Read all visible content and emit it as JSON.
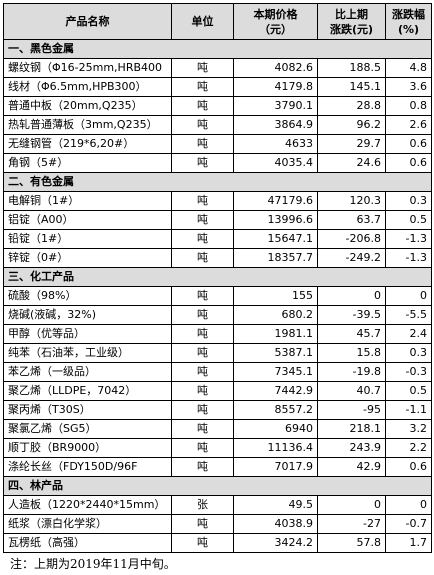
{
  "header": {
    "name": "产品名称",
    "unit": "单位",
    "price": "本期价格\n（元）",
    "change": "比上期\n涨跌(元)",
    "pct": "涨跌幅\n(%)"
  },
  "sections": [
    {
      "title": "一、黑色金属",
      "rows": [
        {
          "name": "螺纹钢（Φ16-25mm,HRB400",
          "unit": "吨",
          "price": "4082.6",
          "change": "188.5",
          "pct": "4.8"
        },
        {
          "name": "线材（Φ6.5mm,HPB300）",
          "unit": "吨",
          "price": "4179.8",
          "change": "145.1",
          "pct": "3.6"
        },
        {
          "name": "普通中板（20mm,Q235）",
          "unit": "吨",
          "price": "3790.1",
          "change": "28.8",
          "pct": "0.8"
        },
        {
          "name": "热轧普通薄板（3mm,Q235）",
          "unit": "吨",
          "price": "3864.9",
          "change": "96.2",
          "pct": "2.6"
        },
        {
          "name": "无缝钢管（219*6,20#）",
          "unit": "吨",
          "price": "4633",
          "change": "29.7",
          "pct": "0.6"
        },
        {
          "name": "角钢（5#）",
          "unit": "吨",
          "price": "4035.4",
          "change": "24.6",
          "pct": "0.6"
        }
      ]
    },
    {
      "title": "二、有色金属",
      "rows": [
        {
          "name": "电解铜（1#）",
          "unit": "吨",
          "price": "47179.6",
          "change": "120.3",
          "pct": "0.3"
        },
        {
          "name": "铝锭（A00）",
          "unit": "吨",
          "price": "13996.6",
          "change": "63.7",
          "pct": "0.5"
        },
        {
          "name": "铅锭（1#）",
          "unit": "吨",
          "price": "15647.1",
          "change": "-206.8",
          "pct": "-1.3"
        },
        {
          "name": "锌锭（0#）",
          "unit": "吨",
          "price": "18357.7",
          "change": "-249.2",
          "pct": "-1.3"
        }
      ]
    },
    {
      "title": "三、化工产品",
      "rows": [
        {
          "name": "硫酸（98%）",
          "unit": "吨",
          "price": "155",
          "change": "0",
          "pct": "0"
        },
        {
          "name": "烧碱(液碱，32%)",
          "unit": "吨",
          "price": "680.2",
          "change": "-39.5",
          "pct": "-5.5"
        },
        {
          "name": "甲醇（优等品）",
          "unit": "吨",
          "price": "1981.1",
          "change": "45.7",
          "pct": "2.4"
        },
        {
          "name": "纯苯（石油苯，工业级）",
          "unit": "吨",
          "price": "5387.1",
          "change": "15.8",
          "pct": "0.3"
        },
        {
          "name": "苯乙烯（一级品）",
          "unit": "吨",
          "price": "7345.1",
          "change": "-19.8",
          "pct": "-0.3"
        },
        {
          "name": "聚乙烯（LLDPE，7042）",
          "unit": "吨",
          "price": "7442.9",
          "change": "40.7",
          "pct": "0.5"
        },
        {
          "name": "聚丙烯（T30S）",
          "unit": "吨",
          "price": "8557.2",
          "change": "-95",
          "pct": "-1.1"
        },
        {
          "name": "聚氯乙烯（SG5）",
          "unit": "吨",
          "price": "6940",
          "change": "218.1",
          "pct": "3.2"
        },
        {
          "name": "顺丁胶（BR9000）",
          "unit": "吨",
          "price": "11136.4",
          "change": "243.9",
          "pct": "2.2"
        },
        {
          "name": "涤纶长丝（FDY150D/96F",
          "unit": "吨",
          "price": "7017.9",
          "change": "42.9",
          "pct": "0.6"
        }
      ]
    },
    {
      "title": "四、林产品",
      "rows": [
        {
          "name": "人造板（1220*2440*15mm）",
          "unit": "张",
          "price": "49.5",
          "change": "0",
          "pct": "0"
        },
        {
          "name": "纸浆（漂白化学浆）",
          "unit": "吨",
          "price": "4038.9",
          "change": "-27",
          "pct": "-0.7"
        },
        {
          "name": "瓦楞纸（高强）",
          "unit": "吨",
          "price": "3424.2",
          "change": "57.8",
          "pct": "1.7"
        }
      ]
    }
  ],
  "note": "注：上期为2019年11月中旬。"
}
